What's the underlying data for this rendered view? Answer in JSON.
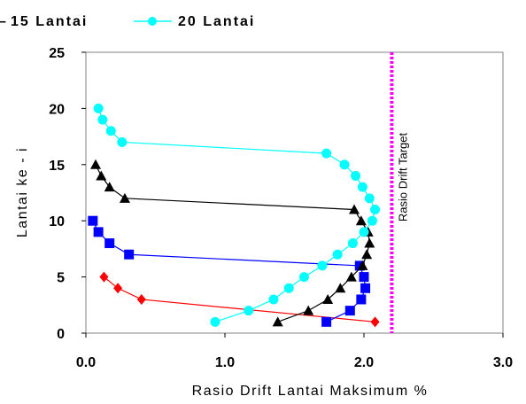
{
  "chart_data": {
    "type": "line",
    "xlabel": "Rasio Drift Lantai Maksimum %",
    "ylabel": "Lantai ke - i",
    "xlim": [
      0,
      3
    ],
    "ylim": [
      0,
      25
    ],
    "xticks": [
      "0.0",
      "1.0",
      "2.0",
      "3.0"
    ],
    "yticks": [
      "0",
      "5",
      "10",
      "15",
      "20",
      "25"
    ],
    "grid": false,
    "legend_position": "top",
    "legend": {
      "dash_label": "–",
      "visible_entries": [
        "15 Lantai",
        "20 Lantai"
      ]
    },
    "annotation": {
      "text": "Rasio Drift Target",
      "x": 2.2,
      "color": "#ff00ff",
      "style": "dotted-vertical-line"
    },
    "series": [
      {
        "color": "#ff0000",
        "marker": "diamond",
        "points": [
          [
            2.08,
            1
          ],
          [
            0.4,
            3
          ],
          [
            0.23,
            4
          ],
          [
            0.13,
            5
          ]
        ]
      },
      {
        "color": "#0000ff",
        "marker": "square",
        "points": [
          [
            1.73,
            1
          ],
          [
            1.9,
            2
          ],
          [
            1.98,
            3
          ],
          [
            2.01,
            4
          ],
          [
            2.0,
            5
          ],
          [
            1.97,
            6
          ],
          [
            0.31,
            7
          ],
          [
            0.17,
            8
          ],
          [
            0.09,
            9
          ],
          [
            0.05,
            10
          ]
        ]
      },
      {
        "name": "15 Lantai",
        "color": "#000000",
        "marker": "triangle",
        "points": [
          [
            1.38,
            1
          ],
          [
            1.6,
            2
          ],
          [
            1.74,
            3
          ],
          [
            1.83,
            4
          ],
          [
            1.91,
            5
          ],
          [
            1.99,
            6
          ],
          [
            2.02,
            7
          ],
          [
            2.04,
            8
          ],
          [
            2.03,
            9
          ],
          [
            1.98,
            10
          ],
          [
            1.93,
            11
          ],
          [
            0.28,
            12
          ],
          [
            0.17,
            13
          ],
          [
            0.11,
            14
          ],
          [
            0.07,
            15
          ]
        ]
      },
      {
        "name": "20 Lantai",
        "color": "#00ffff",
        "marker": "circle",
        "points": [
          [
            0.93,
            1
          ],
          [
            1.17,
            2
          ],
          [
            1.35,
            3
          ],
          [
            1.46,
            4
          ],
          [
            1.57,
            5
          ],
          [
            1.7,
            6
          ],
          [
            1.81,
            7
          ],
          [
            1.92,
            8
          ],
          [
            2.0,
            9
          ],
          [
            2.06,
            10
          ],
          [
            2.08,
            11
          ],
          [
            2.04,
            12
          ],
          [
            1.99,
            13
          ],
          [
            1.94,
            14
          ],
          [
            1.86,
            15
          ],
          [
            1.73,
            16
          ],
          [
            0.26,
            17
          ],
          [
            0.18,
            18
          ],
          [
            0.12,
            19
          ],
          [
            0.09,
            20
          ]
        ]
      }
    ]
  }
}
